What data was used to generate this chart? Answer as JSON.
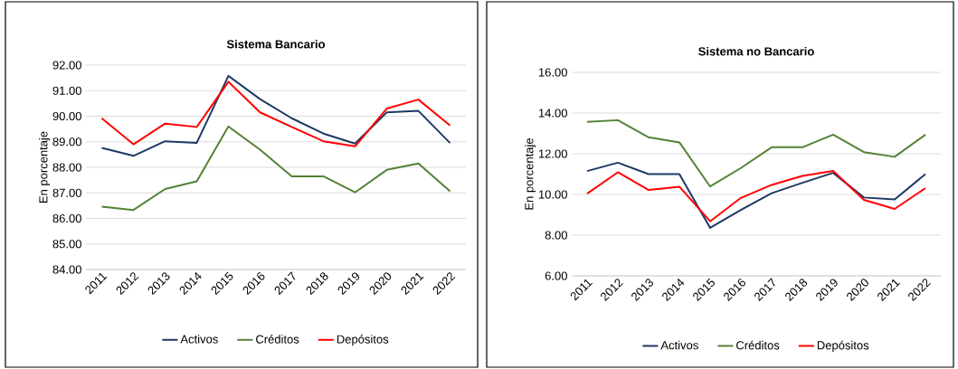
{
  "chart_data": [
    {
      "type": "line",
      "title": "Sistema Bancario",
      "ylabel": "En porcentaje",
      "categories": [
        "2011",
        "2012",
        "2013",
        "2014",
        "2015",
        "2016",
        "2017",
        "2018",
        "2019",
        "2020",
        "2021",
        "2022"
      ],
      "series": [
        {
          "name": "Activos",
          "color": "#1f3864",
          "values": [
            88.76,
            88.45,
            89.02,
            88.96,
            91.58,
            90.67,
            89.92,
            89.32,
            88.93,
            90.15,
            90.21,
            88.95
          ]
        },
        {
          "name": "Créditos",
          "color": "#548235",
          "values": [
            86.46,
            86.33,
            87.15,
            87.45,
            89.6,
            88.69,
            87.65,
            87.65,
            87.02,
            87.9,
            88.15,
            87.06
          ]
        },
        {
          "name": "Depósitos",
          "color": "#ff0000",
          "values": [
            89.92,
            88.9,
            89.71,
            89.58,
            91.35,
            90.15,
            89.58,
            89.02,
            88.82,
            90.3,
            90.65,
            89.64
          ]
        }
      ],
      "ylim": [
        84,
        92
      ],
      "yticks": [
        {
          "value": 84,
          "label": "84.00"
        },
        {
          "value": 85,
          "label": "85.00"
        },
        {
          "value": 86,
          "label": "86.00"
        },
        {
          "value": 87,
          "label": "87.00"
        },
        {
          "value": 88,
          "label": "88.00"
        },
        {
          "value": 89,
          "label": "89.00"
        },
        {
          "value": 90,
          "label": "90.00"
        },
        {
          "value": 91,
          "label": "91.00"
        },
        {
          "value": 92,
          "label": "92.00"
        }
      ],
      "grid": "y",
      "legend": "bottom"
    },
    {
      "type": "line",
      "title": "Sistema no Bancario",
      "ylabel": "En porcentaje",
      "categories": [
        "2011",
        "2012",
        "2013",
        "2014",
        "2015",
        "2016",
        "2017",
        "2018",
        "2019",
        "2020",
        "2021",
        "2022"
      ],
      "series": [
        {
          "name": "Activos",
          "color": "#1f3864",
          "values": [
            11.15,
            11.56,
            11.0,
            11.0,
            8.36,
            9.24,
            10.06,
            10.57,
            11.06,
            9.85,
            9.76,
            11.0
          ]
        },
        {
          "name": "Créditos",
          "color": "#548235",
          "values": [
            13.57,
            13.65,
            12.81,
            12.56,
            10.39,
            11.3,
            12.32,
            12.32,
            12.94,
            12.08,
            11.85,
            12.94
          ]
        },
        {
          "name": "Depósitos",
          "color": "#ff0000",
          "values": [
            10.04,
            11.09,
            10.22,
            10.38,
            8.68,
            9.83,
            10.47,
            10.91,
            11.16,
            9.73,
            9.29,
            10.31
          ]
        }
      ],
      "ylim": [
        6,
        16
      ],
      "yticks": [
        {
          "value": 6,
          "label": "6.00"
        },
        {
          "value": 8,
          "label": "8.00"
        },
        {
          "value": 10,
          "label": "10.00"
        },
        {
          "value": 12,
          "label": "12.00"
        },
        {
          "value": 14,
          "label": "14.00"
        },
        {
          "value": 16,
          "label": "16.00"
        }
      ],
      "grid": "y",
      "legend": "bottom"
    }
  ]
}
